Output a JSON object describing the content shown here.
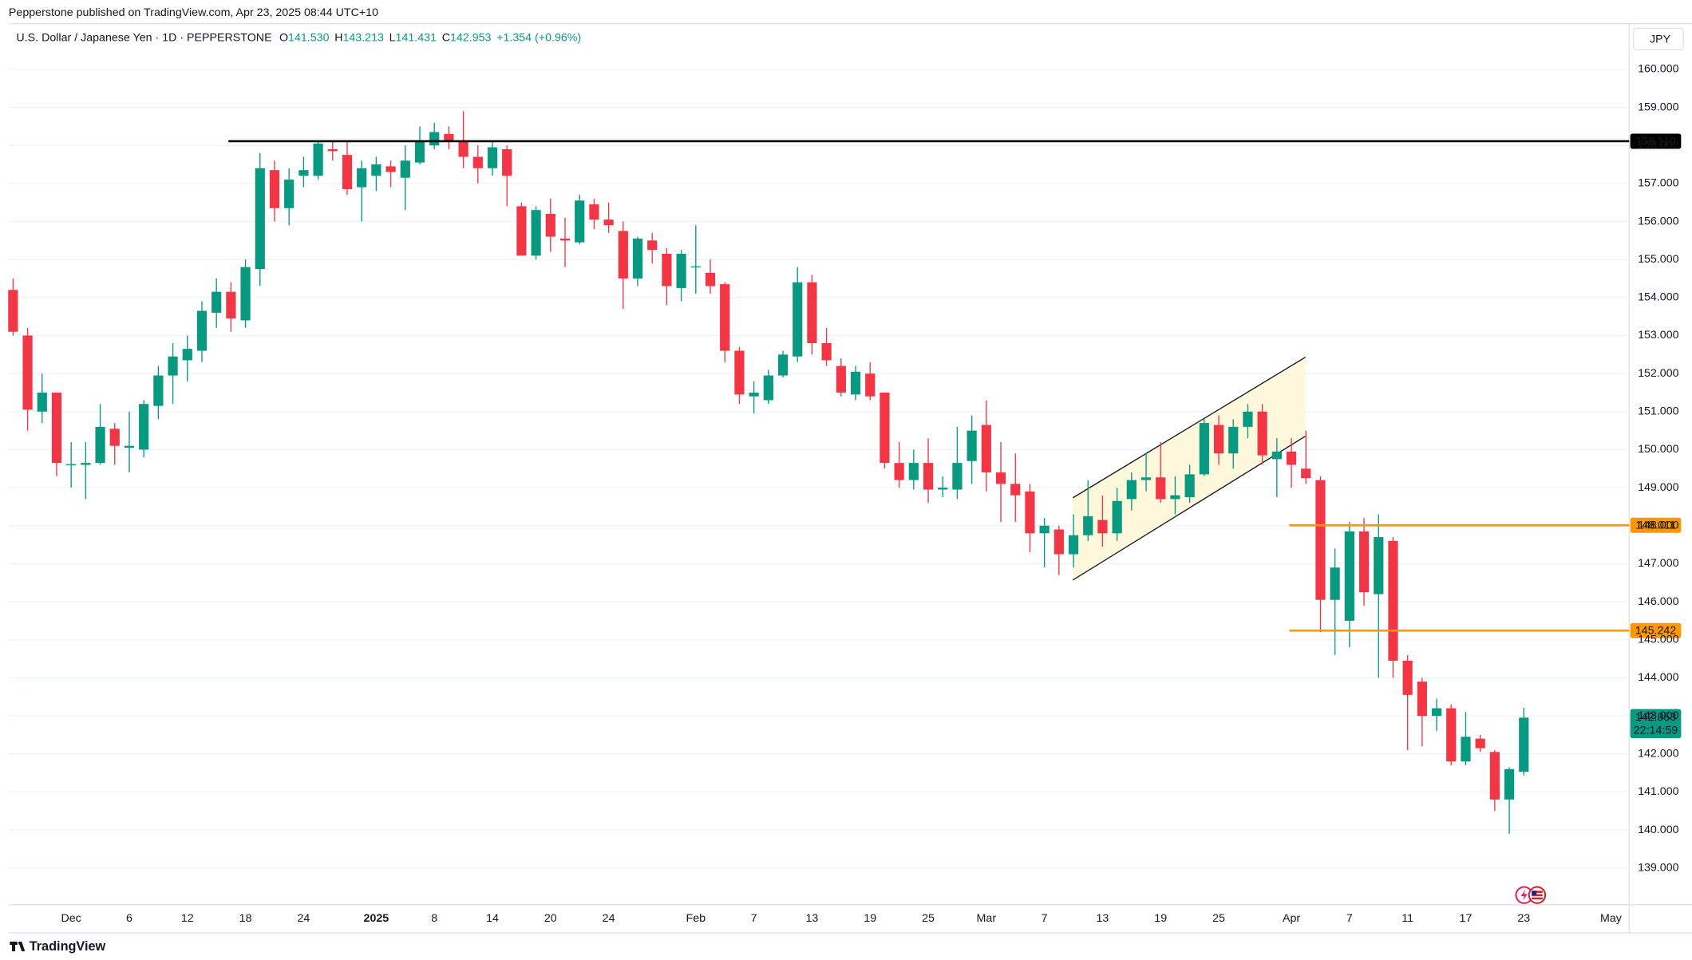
{
  "header": "Pepperstone published on TradingView.com, Apr 23, 2025 08:44 UTC+10",
  "brand": "TradingView",
  "chart_data": {
    "type": "candlestick",
    "legend": {
      "symbol": "U.S. Dollar / Japanese Yen · 1D · PEPPERSTONE",
      "ohlc": [
        {
          "key": "O",
          "value": "141.530"
        },
        {
          "key": "H",
          "value": "143.213"
        },
        {
          "key": "L",
          "value": "141.431"
        },
        {
          "key": "C",
          "value": "142.953"
        }
      ],
      "change": "+1.354 (+0.96%)"
    },
    "currency": "JPY",
    "countdown": "22:14:59",
    "up_color": "#089981",
    "down_color": "#f23645",
    "categories": [
      null,
      null,
      null,
      null,
      "Dec",
      null,
      null,
      null,
      "6",
      null,
      null,
      null,
      "12",
      null,
      null,
      null,
      "18",
      null,
      null,
      null,
      "24",
      null,
      null,
      null,
      null,
      "2025",
      null,
      null,
      null,
      "8",
      null,
      null,
      null,
      "14",
      null,
      null,
      null,
      "20",
      null,
      null,
      null,
      "24",
      null,
      null,
      null,
      null,
      null,
      "Feb",
      null,
      null,
      null,
      "7",
      null,
      null,
      null,
      "13",
      null,
      null,
      null,
      "19",
      null,
      null,
      null,
      "25",
      null,
      null,
      null,
      "Mar",
      null,
      null,
      null,
      "7",
      null,
      null,
      null,
      "13",
      null,
      null,
      null,
      "19",
      null,
      null,
      null,
      "25",
      null,
      null,
      null,
      null,
      "Apr",
      null,
      null,
      null,
      "7",
      null,
      null,
      null,
      "11",
      null,
      null,
      null,
      "17",
      null,
      null,
      null,
      "23",
      null,
      null,
      null,
      null,
      null,
      "May"
    ],
    "open": [
      154.2,
      153.0,
      151.0,
      151.5,
      149.6,
      149.6,
      149.65,
      150.55,
      150.05,
      150.0,
      151.15,
      151.95,
      152.35,
      152.6,
      153.6,
      154.15,
      153.4,
      154.75,
      157.35,
      156.35,
      157.2,
      157.2,
      157.9,
      157.75,
      156.9,
      157.2,
      157.45,
      157.15,
      157.55,
      158.0,
      158.3,
      158.1,
      157.7,
      157.4,
      157.9,
      156.4,
      155.1,
      156.2,
      155.55,
      155.45,
      156.45,
      156.05,
      155.75,
      154.5,
      155.5,
      155.15,
      154.25,
      154.8,
      154.65,
      154.35,
      152.6,
      151.4,
      151.3,
      151.95,
      152.45,
      154.4,
      152.8,
      152.2,
      151.45,
      152.0,
      151.5,
      149.65,
      149.2,
      149.65,
      148.95,
      148.95,
      149.7,
      150.65,
      149.4,
      149.1,
      148.9,
      147.8,
      147.9,
      147.25,
      147.75,
      148.15,
      147.8,
      148.7,
      149.2,
      149.27,
      148.7,
      148.75,
      149.35,
      150.65,
      149.9,
      150.6,
      151.0,
      149.75,
      149.95,
      149.5,
      149.2,
      146.05,
      145.5,
      147.85,
      146.2,
      147.6,
      144.45,
      143.9,
      143.0,
      143.2,
      141.8,
      142.4,
      142.05,
      140.8,
      141.53,
      null,
      null,
      null,
      null,
      null,
      null
    ],
    "high": [
      154.5,
      153.2,
      152.0,
      151.5,
      150.2,
      150.2,
      151.2,
      150.7,
      151.0,
      151.3,
      152.2,
      152.8,
      153.0,
      153.9,
      154.5,
      154.4,
      155.0,
      157.8,
      157.6,
      157.4,
      157.7,
      158.1,
      158.1,
      158.1,
      157.6,
      157.7,
      157.6,
      158.0,
      158.5,
      158.6,
      158.5,
      158.9,
      158.0,
      158.1,
      158.0,
      156.5,
      156.4,
      156.6,
      156.1,
      156.7,
      156.6,
      156.5,
      156.0,
      155.6,
      155.7,
      155.3,
      155.25,
      155.9,
      155.0,
      154.4,
      152.7,
      151.8,
      152.1,
      152.6,
      154.8,
      154.6,
      153.2,
      152.4,
      152.2,
      152.3,
      151.5,
      150.2,
      150.0,
      150.3,
      149.3,
      150.6,
      150.9,
      151.3,
      150.2,
      149.9,
      149.1,
      148.2,
      148.0,
      148.3,
      149.2,
      148.8,
      149.0,
      149.4,
      149.9,
      150.2,
      149.3,
      149.6,
      150.8,
      150.9,
      150.8,
      151.2,
      151.2,
      150.3,
      150.3,
      150.5,
      149.3,
      147.4,
      148.1,
      148.2,
      148.3,
      147.7,
      144.6,
      144.0,
      143.45,
      143.3,
      143.1,
      142.5,
      142.1,
      141.65,
      143.213,
      null,
      null,
      null,
      null,
      null,
      null
    ],
    "low": [
      153.0,
      150.5,
      150.7,
      149.3,
      149.0,
      148.7,
      149.6,
      149.6,
      149.4,
      149.8,
      150.8,
      151.2,
      151.8,
      152.3,
      153.2,
      153.1,
      153.2,
      154.3,
      156.0,
      155.9,
      156.9,
      157.1,
      157.6,
      156.7,
      156.0,
      156.8,
      156.9,
      156.3,
      157.5,
      157.9,
      157.9,
      157.4,
      157.0,
      157.2,
      156.4,
      155.1,
      155.0,
      155.2,
      154.8,
      155.4,
      155.8,
      155.7,
      153.7,
      154.3,
      154.9,
      153.8,
      153.9,
      154.1,
      154.1,
      152.3,
      151.2,
      150.95,
      151.2,
      151.9,
      152.3,
      152.5,
      152.2,
      151.4,
      151.3,
      151.3,
      149.5,
      149.0,
      148.95,
      148.6,
      148.75,
      148.7,
      149.1,
      148.9,
      148.1,
      148.1,
      147.3,
      146.9,
      146.7,
      146.9,
      147.6,
      147.45,
      147.6,
      148.4,
      148.9,
      148.6,
      148.3,
      148.6,
      149.3,
      149.6,
      149.5,
      150.3,
      149.6,
      148.75,
      149.0,
      149.1,
      145.2,
      144.6,
      144.8,
      145.9,
      144.0,
      144.0,
      142.1,
      142.2,
      142.6,
      141.7,
      141.7,
      142.05,
      140.5,
      139.9,
      141.431,
      null,
      null,
      null,
      null,
      null,
      null
    ],
    "close": [
      153.1,
      151.05,
      151.5,
      149.65,
      149.62,
      149.65,
      150.6,
      150.1,
      150.1,
      151.2,
      151.95,
      152.45,
      152.65,
      153.65,
      154.15,
      153.45,
      154.8,
      157.4,
      156.35,
      157.1,
      157.35,
      158.05,
      157.85,
      156.85,
      157.4,
      157.5,
      157.3,
      157.6,
      158.1,
      158.35,
      158.1,
      157.7,
      157.4,
      157.95,
      157.2,
      155.1,
      156.3,
      155.6,
      155.5,
      156.55,
      156.05,
      155.9,
      154.5,
      155.55,
      155.25,
      154.3,
      155.15,
      154.82,
      154.3,
      152.6,
      151.45,
      151.5,
      151.95,
      152.5,
      154.4,
      152.8,
      152.35,
      151.5,
      152.05,
      151.4,
      149.65,
      149.2,
      149.65,
      148.95,
      149.0,
      149.65,
      150.5,
      149.4,
      149.1,
      148.8,
      147.8,
      148.0,
      147.25,
      147.75,
      148.25,
      147.8,
      148.65,
      149.2,
      149.27,
      148.7,
      148.8,
      149.35,
      150.7,
      149.9,
      150.6,
      151.0,
      149.85,
      149.95,
      149.6,
      149.25,
      146.05,
      146.9,
      147.85,
      146.25,
      147.7,
      144.45,
      143.55,
      143.0,
      143.2,
      141.8,
      142.45,
      142.15,
      140.8,
      141.6,
      142.953,
      null,
      null,
      null,
      null,
      null,
      null
    ],
    "ylim": [
      138.06,
      161.14
    ],
    "yticks": [
      {
        "value": 139,
        "label": "139.000"
      },
      {
        "value": 140,
        "label": "140.000"
      },
      {
        "value": 141,
        "label": "141.000"
      },
      {
        "value": 142,
        "label": "142.000"
      },
      {
        "value": 143,
        "label": "143.000"
      },
      {
        "value": 144,
        "label": "144.000"
      },
      {
        "value": 145,
        "label": "145.000"
      },
      {
        "value": 146,
        "label": "146.000"
      },
      {
        "value": 147,
        "label": "147.000"
      },
      {
        "value": 148,
        "label": "148.000"
      },
      {
        "value": 149,
        "label": "149.000"
      },
      {
        "value": 150,
        "label": "150.000"
      },
      {
        "value": 151,
        "label": "151.000"
      },
      {
        "value": 152,
        "label": "152.000"
      },
      {
        "value": 153,
        "label": "153.000"
      },
      {
        "value": 154,
        "label": "154.000"
      },
      {
        "value": 155,
        "label": "155.000"
      },
      {
        "value": 156,
        "label": "156.000"
      },
      {
        "value": 157,
        "label": "157.000"
      },
      {
        "value": 158,
        "label": "158.000"
      },
      {
        "value": 159,
        "label": "159.000"
      },
      {
        "value": 160,
        "label": "160.000"
      }
    ],
    "grid": true,
    "hlines": [
      {
        "value": 158.11,
        "label": "158.110",
        "color": "#000000"
      },
      {
        "value": 148.011,
        "label": "148.011",
        "color": "#ff9800"
      },
      {
        "value": 145.242,
        "label": "145.242",
        "color": "#ff9800"
      }
    ]
  }
}
